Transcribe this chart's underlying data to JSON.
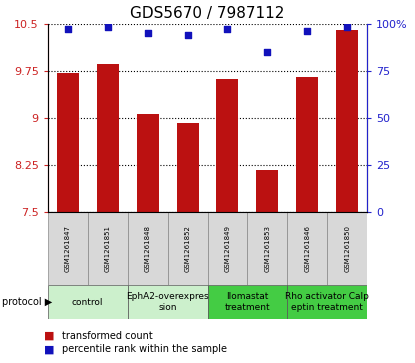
{
  "title": "GDS5670 / 7987112",
  "samples": [
    "GSM1261847",
    "GSM1261851",
    "GSM1261848",
    "GSM1261852",
    "GSM1261849",
    "GSM1261853",
    "GSM1261846",
    "GSM1261850"
  ],
  "transformed_count": [
    9.72,
    9.85,
    9.07,
    8.92,
    9.62,
    8.18,
    9.65,
    10.4
  ],
  "percentile_rank": [
    97,
    98,
    95,
    94,
    97,
    85,
    96,
    98
  ],
  "ylim_left": [
    7.5,
    10.5
  ],
  "ylim_right": [
    0,
    100
  ],
  "yticks_left": [
    7.5,
    8.25,
    9.0,
    9.75,
    10.5
  ],
  "ytick_labels_left": [
    "7.5",
    "8.25",
    "9",
    "9.75",
    "10.5"
  ],
  "yticks_right": [
    0,
    25,
    50,
    75,
    100
  ],
  "ytick_labels_right": [
    "0",
    "25",
    "50",
    "75",
    "100%"
  ],
  "groups": [
    {
      "label": "control",
      "indices": [
        0,
        1
      ],
      "color": "#ccf0cc"
    },
    {
      "label": "EphA2-overexpres\nsion",
      "indices": [
        2,
        3
      ],
      "color": "#ccf0cc"
    },
    {
      "label": "Ilomastat\ntreatment",
      "indices": [
        4,
        5
      ],
      "color": "#44cc44"
    },
    {
      "label": "Rho activator Calp\neptin treatment",
      "indices": [
        6,
        7
      ],
      "color": "#44cc44"
    }
  ],
  "bar_color": "#bb1111",
  "dot_color": "#1111bb",
  "bar_width": 0.55,
  "bar_bottom": 7.5,
  "legend_label_bar": "transformed count",
  "legend_label_dot": "percentile rank within the sample",
  "protocol_label": "protocol",
  "left_tick_color": "#cc2222",
  "right_tick_color": "#2222cc",
  "title_fontsize": 11,
  "tick_fontsize": 8,
  "sample_fontsize": 5,
  "group_fontsize": 6.5,
  "legend_fontsize": 7,
  "protocol_fontsize": 7
}
